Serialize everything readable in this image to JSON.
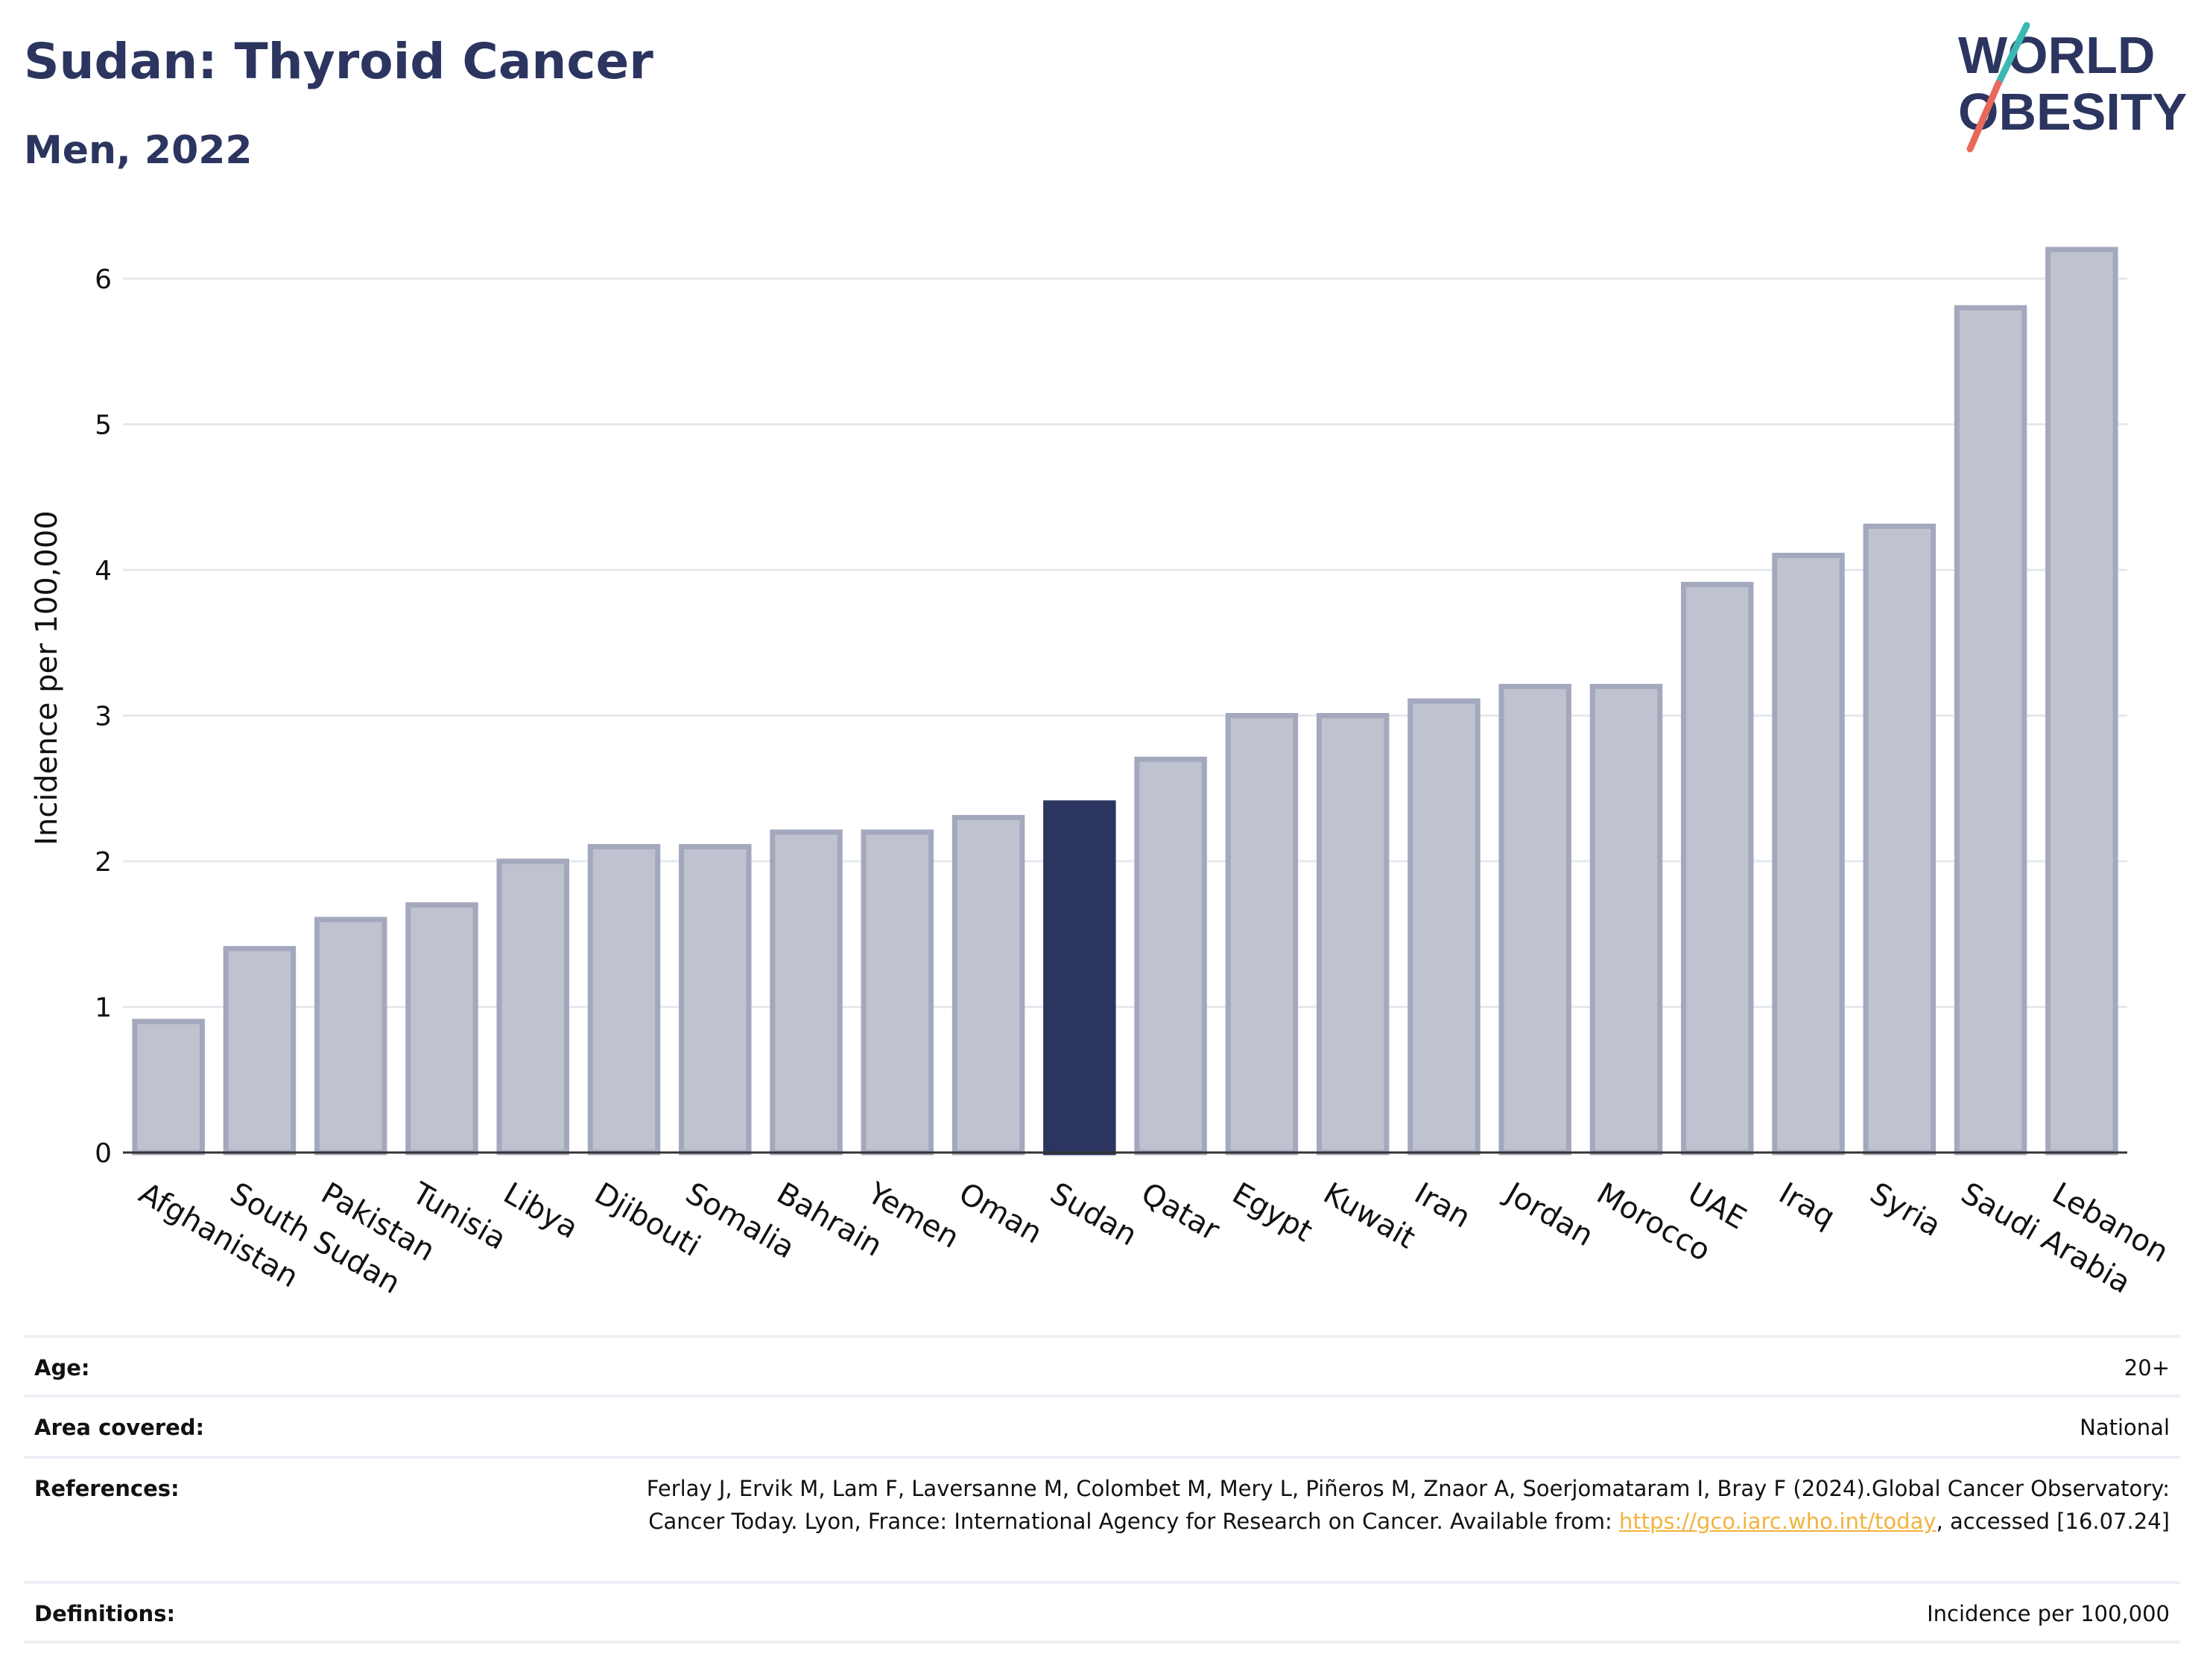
{
  "header": {
    "title": "Sudan: Thyroid Cancer",
    "subtitle": "Men, 2022"
  },
  "logo": {
    "line1": "WORLD",
    "line2": "OBESITY",
    "text_color": "#2b355f",
    "slash_top_color": "#3cb9b5",
    "slash_bottom_color": "#e8685a"
  },
  "chart_data": {
    "type": "bar",
    "ylabel": "Incidence per 100,000",
    "ylim": [
      0,
      6.4
    ],
    "yticks": [
      0,
      1,
      2,
      3,
      4,
      5,
      6
    ],
    "grid": true,
    "categories": [
      "Afghanistan",
      "South Sudan",
      "Pakistan",
      "Tunisia",
      "Libya",
      "Djibouti",
      "Somalia",
      "Bahrain",
      "Yemen",
      "Oman",
      "Sudan",
      "Qatar",
      "Egypt",
      "Kuwait",
      "Iran",
      "Jordan",
      "Morocco",
      "UAE",
      "Iraq",
      "Syria",
      "Saudi Arabia",
      "Lebanon"
    ],
    "values": [
      0.9,
      1.4,
      1.6,
      1.7,
      2.0,
      2.1,
      2.1,
      2.2,
      2.2,
      2.3,
      2.4,
      2.7,
      3.0,
      3.0,
      3.1,
      3.2,
      3.2,
      3.9,
      4.1,
      4.3,
      5.8,
      6.2
    ],
    "highlight": "Sudan",
    "colors": {
      "bar_fill": "#bfc2cf",
      "bar_stroke": "#a3a8bd",
      "highlight": "#2b355f",
      "grid": "#e6e8ee",
      "axis": "#333333"
    }
  },
  "meta": {
    "age_label": "Age:",
    "age_value": "20+",
    "area_label": "Area covered:",
    "area_value": "National",
    "references_label": "References:",
    "references_text_before": "Ferlay J, Ervik M, Lam F, Laversanne M, Colombet M, Mery L, Piñeros M, Znaor A, Soerjomataram I, Bray F (2024).Global Cancer Observatory: Cancer Today. Lyon, France: International Agency for Research on Cancer. Available from:",
    "references_link": "https://gco.iarc.who.int/today",
    "references_text_after": ", accessed [16.07.24]",
    "definitions_label": "Definitions:",
    "definitions_value": "Incidence per 100,000"
  }
}
